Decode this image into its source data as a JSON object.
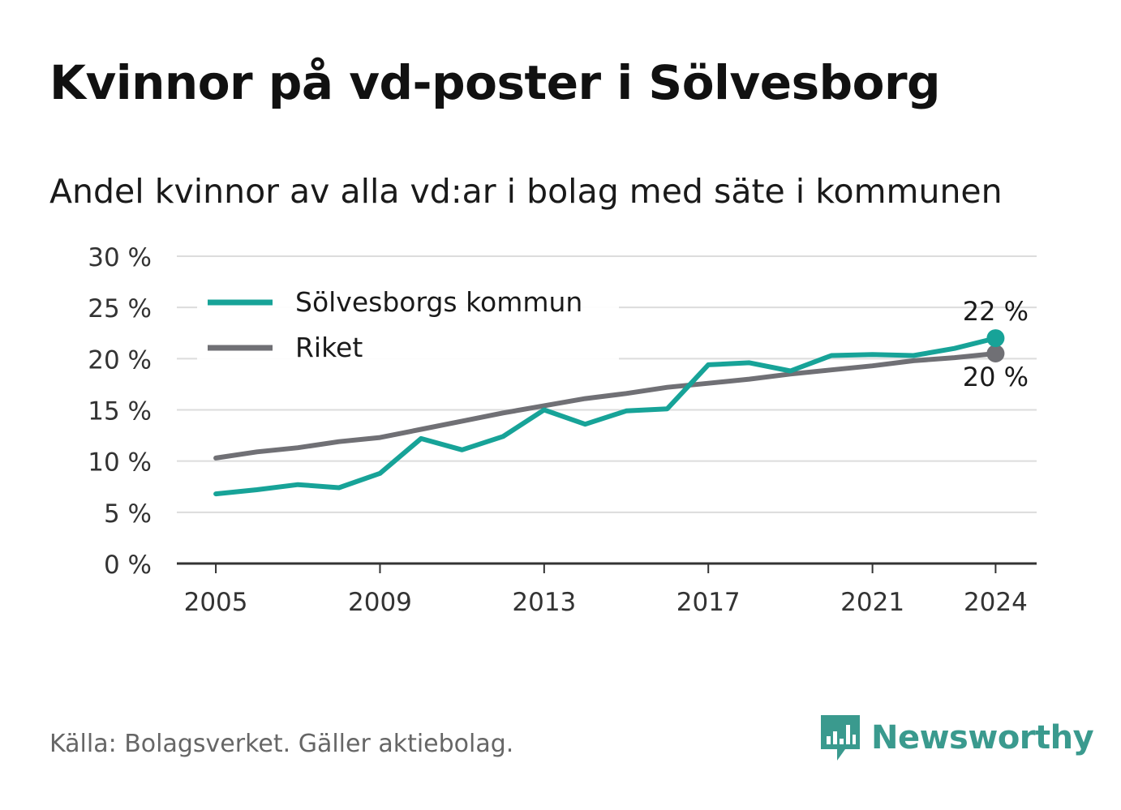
{
  "title": "Kvinnor på vd-poster i Sölvesborg",
  "subtitle": "Andel kvinnor av alla vd:ar i bolag med säte i kommunen",
  "source": "Källa: Bolagsverket. Gäller aktiebolag.",
  "brand": {
    "name": "Newsworthy",
    "icon": "newsworthy-logo-icon",
    "color": "#3a9a8e"
  },
  "chart_data": {
    "type": "line",
    "x": [
      2005,
      2006,
      2007,
      2008,
      2009,
      2010,
      2011,
      2012,
      2013,
      2014,
      2015,
      2016,
      2017,
      2018,
      2019,
      2020,
      2021,
      2022,
      2023,
      2024
    ],
    "x_tick_labels": [
      "2005",
      "2009",
      "2013",
      "2017",
      "2021",
      "2024"
    ],
    "x_ticks": [
      2005,
      2009,
      2013,
      2017,
      2021,
      2024
    ],
    "y_ticks": [
      0,
      5,
      10,
      15,
      20,
      25,
      30
    ],
    "y_tick_labels": [
      "0 %",
      "5 %",
      "10 %",
      "15 %",
      "20 %",
      "25 %",
      "30 %"
    ],
    "ylim": [
      0,
      30
    ],
    "grid": true,
    "legend_position": "top-left",
    "series": [
      {
        "name": "Sölvesborgs kommun",
        "color": "#17a398",
        "values": [
          6.8,
          7.2,
          7.7,
          7.4,
          8.8,
          12.2,
          11.1,
          12.4,
          15.0,
          13.6,
          14.9,
          15.1,
          19.4,
          19.6,
          18.8,
          20.3,
          20.4,
          20.3,
          21.0,
          22.0
        ],
        "end_label": "22 %"
      },
      {
        "name": "Riket",
        "color": "#707075",
        "values": [
          10.3,
          10.9,
          11.3,
          11.9,
          12.3,
          13.1,
          13.9,
          14.7,
          15.4,
          16.1,
          16.6,
          17.2,
          17.6,
          18.0,
          18.5,
          18.9,
          19.3,
          19.8,
          20.1,
          20.5
        ],
        "end_label": "20 %"
      }
    ]
  }
}
